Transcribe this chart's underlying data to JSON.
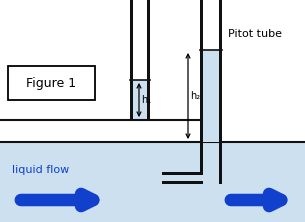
{
  "bg_color": "#ffffff",
  "water_color": "#cce0f0",
  "tube_color": "#111111",
  "arrow_color": "#1040cc",
  "text_color": "#000000",
  "figure_label": "Figure 1",
  "pitot_label": "Pitot tube",
  "flow_label": "liquid flow",
  "h1_label": "h₁",
  "h2_label": "h₂",
  "figsize": [
    3.05,
    2.22
  ],
  "dpi": 100,
  "xlim": [
    0,
    305
  ],
  "ylim": [
    0,
    222
  ]
}
